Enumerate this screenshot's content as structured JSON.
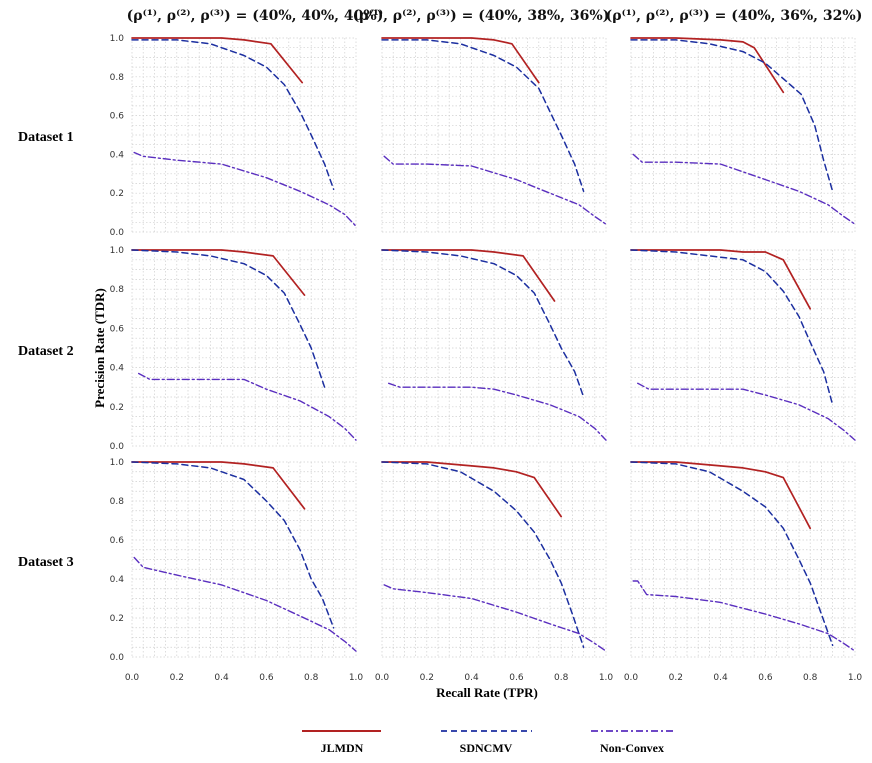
{
  "colors": {
    "JLMDN": "#b22222",
    "SDNCMV": "#1c2fa0",
    "Non-Convex": "#5a2fbf"
  },
  "x_ticks": [
    "0.0",
    "0.2",
    "0.4",
    "0.6",
    "0.8",
    "1.0"
  ],
  "y_ticks": [
    "0.0",
    "0.2",
    "0.4",
    "0.6",
    "0.8",
    "1.0"
  ],
  "xlabel": "Recall Rate (TPR)",
  "ylabel": "Precision Rate (TDR)",
  "legend": [
    "JLMDN",
    "SDNCMV",
    "Non-Convex"
  ],
  "column_titles": [
    "(ρ⁽¹⁾, ρ⁽²⁾, ρ⁽³⁾) = (40%, 40%, 40%)",
    "(ρ⁽¹⁾, ρ⁽²⁾, ρ⁽³⁾) = (40%, 38%, 36%)",
    "(ρ⁽¹⁾, ρ⁽²⁾, ρ⁽³⁾) = (40%, 36%, 32%)"
  ],
  "row_labels": [
    "Dataset 1",
    "Dataset 2",
    "Dataset 3"
  ],
  "chart_data": {
    "type": "line",
    "xlabel": "Recall Rate (TPR)",
    "ylabel": "Precision Rate (TDR)",
    "xlim": [
      0,
      1
    ],
    "ylim": [
      0,
      1
    ],
    "grid": true,
    "legend_position": "bottom",
    "series_names": [
      "JLMDN",
      "SDNCMV",
      "Non-Convex"
    ],
    "panels": [
      [
        {
          "JLMDN": [
            [
              0,
              1.0
            ],
            [
              0.2,
              1.0
            ],
            [
              0.4,
              1.0
            ],
            [
              0.5,
              0.99
            ],
            [
              0.62,
              0.97
            ],
            [
              0.76,
              0.77
            ]
          ],
          "SDNCMV": [
            [
              0,
              0.99
            ],
            [
              0.2,
              0.99
            ],
            [
              0.35,
              0.97
            ],
            [
              0.5,
              0.91
            ],
            [
              0.6,
              0.85
            ],
            [
              0.68,
              0.76
            ],
            [
              0.75,
              0.62
            ],
            [
              0.8,
              0.5
            ],
            [
              0.86,
              0.35
            ],
            [
              0.9,
              0.22
            ]
          ],
          "Non-Convex": [
            [
              0.01,
              0.41
            ],
            [
              0.05,
              0.39
            ],
            [
              0.2,
              0.37
            ],
            [
              0.4,
              0.35
            ],
            [
              0.6,
              0.28
            ],
            [
              0.75,
              0.21
            ],
            [
              0.88,
              0.14
            ],
            [
              0.95,
              0.09
            ],
            [
              1.0,
              0.03
            ]
          ]
        },
        {
          "JLMDN": [
            [
              0,
              1.0
            ],
            [
              0.2,
              1.0
            ],
            [
              0.4,
              1.0
            ],
            [
              0.5,
              0.99
            ],
            [
              0.58,
              0.97
            ],
            [
              0.7,
              0.77
            ]
          ],
          "SDNCMV": [
            [
              0,
              0.99
            ],
            [
              0.2,
              0.99
            ],
            [
              0.35,
              0.97
            ],
            [
              0.5,
              0.91
            ],
            [
              0.6,
              0.85
            ],
            [
              0.7,
              0.74
            ],
            [
              0.8,
              0.5
            ],
            [
              0.86,
              0.35
            ],
            [
              0.9,
              0.21
            ]
          ],
          "Non-Convex": [
            [
              0.01,
              0.39
            ],
            [
              0.05,
              0.35
            ],
            [
              0.2,
              0.35
            ],
            [
              0.4,
              0.34
            ],
            [
              0.6,
              0.27
            ],
            [
              0.75,
              0.2
            ],
            [
              0.88,
              0.14
            ],
            [
              0.95,
              0.08
            ],
            [
              1.0,
              0.04
            ]
          ]
        },
        {
          "JLMDN": [
            [
              0,
              1.0
            ],
            [
              0.2,
              1.0
            ],
            [
              0.4,
              0.99
            ],
            [
              0.5,
              0.98
            ],
            [
              0.55,
              0.95
            ],
            [
              0.68,
              0.72
            ]
          ],
          "SDNCMV": [
            [
              0,
              0.99
            ],
            [
              0.2,
              0.99
            ],
            [
              0.35,
              0.97
            ],
            [
              0.5,
              0.93
            ],
            [
              0.6,
              0.87
            ],
            [
              0.7,
              0.77
            ],
            [
              0.76,
              0.71
            ],
            [
              0.82,
              0.55
            ],
            [
              0.86,
              0.37
            ],
            [
              0.9,
              0.21
            ]
          ],
          "Non-Convex": [
            [
              0.01,
              0.4
            ],
            [
              0.05,
              0.36
            ],
            [
              0.2,
              0.36
            ],
            [
              0.4,
              0.35
            ],
            [
              0.6,
              0.27
            ],
            [
              0.75,
              0.21
            ],
            [
              0.88,
              0.14
            ],
            [
              0.95,
              0.08
            ],
            [
              1.0,
              0.04
            ]
          ]
        }
      ],
      [
        {
          "JLMDN": [
            [
              0,
              1.0
            ],
            [
              0.2,
              1.0
            ],
            [
              0.4,
              1.0
            ],
            [
              0.5,
              0.99
            ],
            [
              0.63,
              0.97
            ],
            [
              0.77,
              0.77
            ]
          ],
          "SDNCMV": [
            [
              0,
              1.0
            ],
            [
              0.2,
              0.99
            ],
            [
              0.35,
              0.97
            ],
            [
              0.5,
              0.93
            ],
            [
              0.6,
              0.87
            ],
            [
              0.68,
              0.78
            ],
            [
              0.75,
              0.62
            ],
            [
              0.8,
              0.5
            ],
            [
              0.86,
              0.3
            ]
          ],
          "Non-Convex": [
            [
              0.03,
              0.37
            ],
            [
              0.08,
              0.34
            ],
            [
              0.2,
              0.34
            ],
            [
              0.4,
              0.34
            ],
            [
              0.5,
              0.34
            ],
            [
              0.6,
              0.29
            ],
            [
              0.75,
              0.23
            ],
            [
              0.88,
              0.15
            ],
            [
              0.95,
              0.09
            ],
            [
              1.0,
              0.03
            ]
          ]
        },
        {
          "JLMDN": [
            [
              0,
              1.0
            ],
            [
              0.2,
              1.0
            ],
            [
              0.4,
              1.0
            ],
            [
              0.5,
              0.99
            ],
            [
              0.63,
              0.97
            ],
            [
              0.77,
              0.74
            ]
          ],
          "SDNCMV": [
            [
              0,
              1.0
            ],
            [
              0.2,
              0.99
            ],
            [
              0.35,
              0.97
            ],
            [
              0.5,
              0.93
            ],
            [
              0.6,
              0.87
            ],
            [
              0.68,
              0.78
            ],
            [
              0.75,
              0.62
            ],
            [
              0.8,
              0.5
            ],
            [
              0.86,
              0.38
            ],
            [
              0.9,
              0.25
            ]
          ],
          "Non-Convex": [
            [
              0.03,
              0.32
            ],
            [
              0.08,
              0.3
            ],
            [
              0.2,
              0.3
            ],
            [
              0.4,
              0.3
            ],
            [
              0.5,
              0.29
            ],
            [
              0.6,
              0.26
            ],
            [
              0.75,
              0.21
            ],
            [
              0.88,
              0.15
            ],
            [
              0.95,
              0.09
            ],
            [
              1.0,
              0.03
            ]
          ]
        },
        {
          "JLMDN": [
            [
              0,
              1.0
            ],
            [
              0.2,
              1.0
            ],
            [
              0.4,
              1.0
            ],
            [
              0.5,
              0.99
            ],
            [
              0.6,
              0.99
            ],
            [
              0.68,
              0.95
            ],
            [
              0.8,
              0.7
            ]
          ],
          "SDNCMV": [
            [
              0,
              1.0
            ],
            [
              0.2,
              0.99
            ],
            [
              0.35,
              0.97
            ],
            [
              0.5,
              0.95
            ],
            [
              0.6,
              0.89
            ],
            [
              0.68,
              0.79
            ],
            [
              0.75,
              0.66
            ],
            [
              0.8,
              0.53
            ],
            [
              0.86,
              0.38
            ],
            [
              0.9,
              0.21
            ]
          ],
          "Non-Convex": [
            [
              0.03,
              0.32
            ],
            [
              0.08,
              0.29
            ],
            [
              0.2,
              0.29
            ],
            [
              0.4,
              0.29
            ],
            [
              0.5,
              0.29
            ],
            [
              0.6,
              0.26
            ],
            [
              0.75,
              0.21
            ],
            [
              0.88,
              0.14
            ],
            [
              0.95,
              0.08
            ],
            [
              1.0,
              0.03
            ]
          ]
        }
      ],
      [
        {
          "JLMDN": [
            [
              0,
              1.0
            ],
            [
              0.2,
              1.0
            ],
            [
              0.4,
              1.0
            ],
            [
              0.5,
              0.99
            ],
            [
              0.63,
              0.97
            ],
            [
              0.77,
              0.76
            ]
          ],
          "SDNCMV": [
            [
              0,
              1.0
            ],
            [
              0.2,
              0.99
            ],
            [
              0.35,
              0.97
            ],
            [
              0.5,
              0.91
            ],
            [
              0.6,
              0.8
            ],
            [
              0.68,
              0.7
            ],
            [
              0.75,
              0.55
            ],
            [
              0.8,
              0.4
            ],
            [
              0.85,
              0.3
            ],
            [
              0.9,
              0.15
            ]
          ],
          "Non-Convex": [
            [
              0.01,
              0.51
            ],
            [
              0.05,
              0.46
            ],
            [
              0.2,
              0.42
            ],
            [
              0.4,
              0.37
            ],
            [
              0.6,
              0.29
            ],
            [
              0.75,
              0.21
            ],
            [
              0.88,
              0.14
            ],
            [
              0.95,
              0.08
            ],
            [
              1.0,
              0.03
            ]
          ]
        },
        {
          "JLMDN": [
            [
              0,
              1.0
            ],
            [
              0.2,
              1.0
            ],
            [
              0.4,
              0.98
            ],
            [
              0.5,
              0.97
            ],
            [
              0.6,
              0.95
            ],
            [
              0.68,
              0.92
            ],
            [
              0.8,
              0.72
            ]
          ],
          "SDNCMV": [
            [
              0,
              1.0
            ],
            [
              0.2,
              0.99
            ],
            [
              0.35,
              0.95
            ],
            [
              0.5,
              0.85
            ],
            [
              0.6,
              0.75
            ],
            [
              0.68,
              0.64
            ],
            [
              0.75,
              0.5
            ],
            [
              0.8,
              0.38
            ],
            [
              0.85,
              0.22
            ],
            [
              0.9,
              0.05
            ]
          ],
          "Non-Convex": [
            [
              0.01,
              0.37
            ],
            [
              0.05,
              0.35
            ],
            [
              0.2,
              0.33
            ],
            [
              0.4,
              0.3
            ],
            [
              0.6,
              0.23
            ],
            [
              0.75,
              0.17
            ],
            [
              0.88,
              0.12
            ],
            [
              0.95,
              0.07
            ],
            [
              1.0,
              0.03
            ]
          ]
        },
        {
          "JLMDN": [
            [
              0,
              1.0
            ],
            [
              0.2,
              1.0
            ],
            [
              0.4,
              0.98
            ],
            [
              0.5,
              0.97
            ],
            [
              0.6,
              0.95
            ],
            [
              0.68,
              0.92
            ],
            [
              0.8,
              0.66
            ]
          ],
          "SDNCMV": [
            [
              0,
              1.0
            ],
            [
              0.2,
              0.99
            ],
            [
              0.35,
              0.95
            ],
            [
              0.5,
              0.85
            ],
            [
              0.6,
              0.77
            ],
            [
              0.68,
              0.66
            ],
            [
              0.75,
              0.5
            ],
            [
              0.8,
              0.38
            ],
            [
              0.85,
              0.22
            ],
            [
              0.9,
              0.06
            ]
          ],
          "Non-Convex": [
            [
              0.01,
              0.39
            ],
            [
              0.03,
              0.39
            ],
            [
              0.07,
              0.32
            ],
            [
              0.2,
              0.31
            ],
            [
              0.4,
              0.28
            ],
            [
              0.6,
              0.22
            ],
            [
              0.75,
              0.17
            ],
            [
              0.88,
              0.12
            ],
            [
              0.95,
              0.07
            ],
            [
              1.0,
              0.03
            ]
          ]
        }
      ]
    ]
  }
}
